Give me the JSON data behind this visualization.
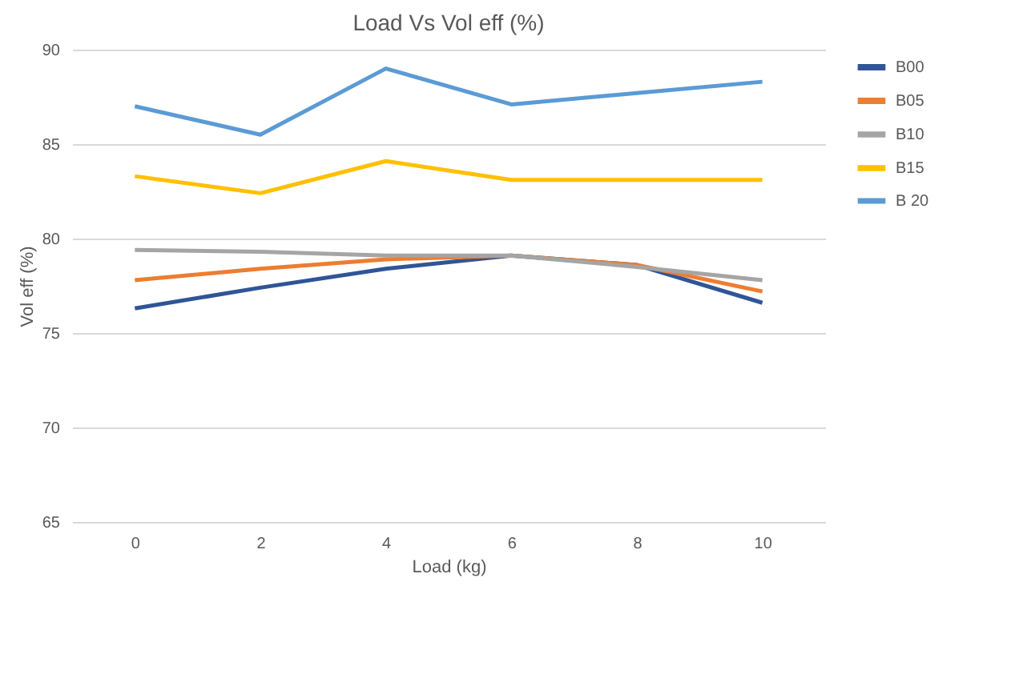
{
  "chart_data": {
    "type": "line",
    "title": "Load Vs Vol eff (%)",
    "xlabel": "Load (kg)",
    "ylabel": "Vol eff (%)",
    "categories": [
      "0",
      "2",
      "4",
      "6",
      "8",
      "10"
    ],
    "series": [
      {
        "name": "B00",
        "color": "#2f5597",
        "values": [
          76.3,
          77.4,
          78.4,
          79.1,
          78.6,
          76.6
        ]
      },
      {
        "name": "B05",
        "color": "#ed7d31",
        "values": [
          77.8,
          78.4,
          78.9,
          79.1,
          78.6,
          77.2
        ]
      },
      {
        "name": "B10",
        "color": "#a5a5a5",
        "values": [
          79.4,
          79.3,
          79.1,
          79.1,
          78.5,
          77.8
        ]
      },
      {
        "name": "B15",
        "color": "#ffc000",
        "values": [
          83.3,
          82.4,
          84.1,
          83.1,
          83.1,
          83.1
        ]
      },
      {
        "name": "B 20",
        "color": "#5b9bd5",
        "values": [
          87.0,
          85.5,
          89.0,
          87.1,
          87.7,
          88.3
        ]
      }
    ],
    "ylim": [
      65,
      90
    ],
    "yticks": [
      65,
      70,
      75,
      80,
      85,
      90
    ],
    "grid": "y",
    "legend": "right",
    "marker": "none",
    "line_style": "solid"
  }
}
